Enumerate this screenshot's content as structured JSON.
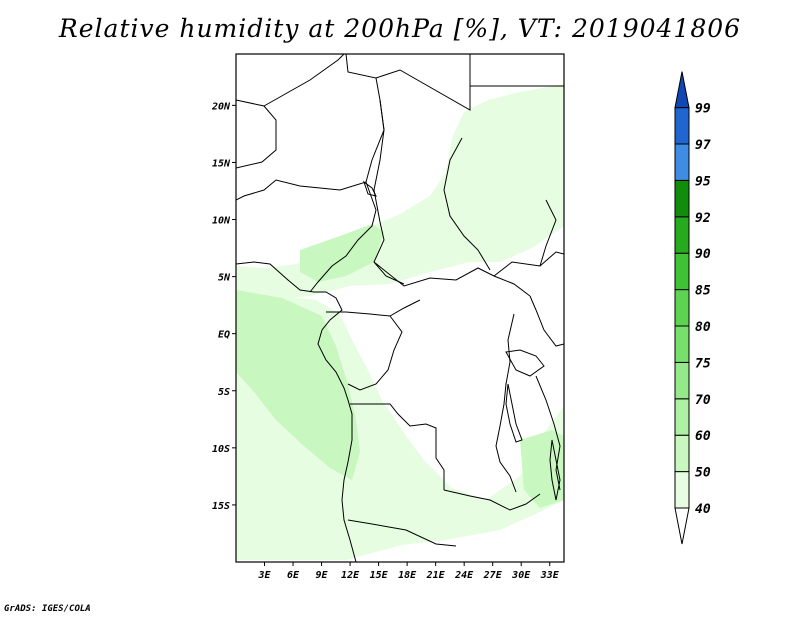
{
  "title": "Relative humidity at 200hPa [%], VT: 2019041806",
  "credit": "GrADS: IGES/COLA",
  "map": {
    "lon_range": [
      0,
      34.5
    ],
    "lat_range": [
      -20,
      24.5
    ],
    "x_ticks": [
      "3E",
      "6E",
      "9E",
      "12E",
      "15E",
      "18E",
      "21E",
      "24E",
      "27E",
      "30E",
      "33E"
    ],
    "y_ticks": [
      "20N",
      "15N",
      "10N",
      "5N",
      "EQ",
      "5S",
      "10S",
      "15S"
    ]
  },
  "colorbar": {
    "labels": [
      "40",
      "50",
      "60",
      "70",
      "75",
      "80",
      "85",
      "90",
      "92",
      "95",
      "97",
      "99"
    ],
    "colors": [
      "#ffffff",
      "#e6fde1",
      "#c9f7c0",
      "#aef1a4",
      "#94ea88",
      "#77e06b",
      "#5dd451",
      "#3fc235",
      "#27ab1e",
      "#118c0d",
      "#3f8de3",
      "#1f66d1",
      "#1147b5"
    ]
  },
  "chart_data": {
    "type": "heatmap",
    "title": "Relative humidity at 200hPa [%], VT: 2019041806",
    "variable": "Relative humidity at 200hPa",
    "units": "%",
    "valid_time": "2019041806",
    "xlabel": "",
    "ylabel": "",
    "xlim": [
      0,
      34.5
    ],
    "ylim": [
      -20,
      24.5
    ],
    "x_ticks": [
      "3E",
      "6E",
      "9E",
      "12E",
      "15E",
      "18E",
      "21E",
      "24E",
      "27E",
      "30E",
      "33E"
    ],
    "y_ticks": [
      "20N",
      "15N",
      "10N",
      "5N",
      "EQ",
      "5S",
      "10S",
      "15S"
    ],
    "levels": [
      40,
      50,
      60,
      70,
      75,
      80,
      85,
      90,
      92,
      95,
      97,
      99
    ],
    "shaded_ranges_present": [
      "40-50",
      "50-60"
    ],
    "regions": [
      {
        "name": "humid band (north-central)",
        "range": "40-50"
      },
      {
        "name": "humid band (southwest)",
        "range": "40-50"
      },
      {
        "name": "humid core (southwest coast)",
        "range": "50-60"
      }
    ]
  }
}
